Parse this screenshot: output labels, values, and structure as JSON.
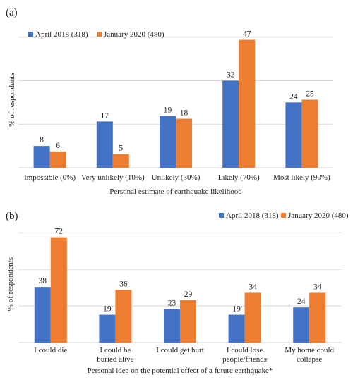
{
  "colors": {
    "series_a": "#4472C4",
    "series_b": "#ED7D31",
    "grid": "#D9D9D9",
    "axis": "#7F7F7F",
    "text": "#222222"
  },
  "chart_data": [
    {
      "panel_label": "(a)",
      "type": "bar",
      "categories": [
        "Impossible (0%)",
        "Very unlikely (10%)",
        "Unlikely  (30%)",
        "Likely (70%)",
        "Most likely (90%)"
      ],
      "series": [
        {
          "name": "April 2018 (318)",
          "values": [
            8,
            17,
            19,
            32,
            24
          ]
        },
        {
          "name": "January 2020 (480)",
          "values": [
            6,
            5,
            18,
            47,
            25
          ]
        }
      ],
      "xlabel": "Personal estimate of earthquake likelihood",
      "ylabel": "% of respondents",
      "ylim": [
        0,
        50
      ],
      "gridlines": [
        0,
        16,
        32,
        48
      ],
      "legend": "top-left"
    },
    {
      "panel_label": "(b)",
      "type": "bar",
      "categories": [
        "I could die",
        "I could be buried alive",
        "I could get hurt",
        "I could lose people/friends",
        "My home could collapse"
      ],
      "series": [
        {
          "name": "April 2018 (318)",
          "values": [
            38,
            19,
            23,
            19,
            24
          ]
        },
        {
          "name": "January 2020 (480)",
          "values": [
            72,
            36,
            29,
            34,
            34
          ]
        }
      ],
      "xlabel": "Personal idea on the potential effect of a future earthquake*",
      "ylabel": "% of respondents",
      "ylim": [
        0,
        80
      ],
      "gridlines": [
        0,
        25,
        50,
        75
      ],
      "legend": "top-right"
    }
  ]
}
